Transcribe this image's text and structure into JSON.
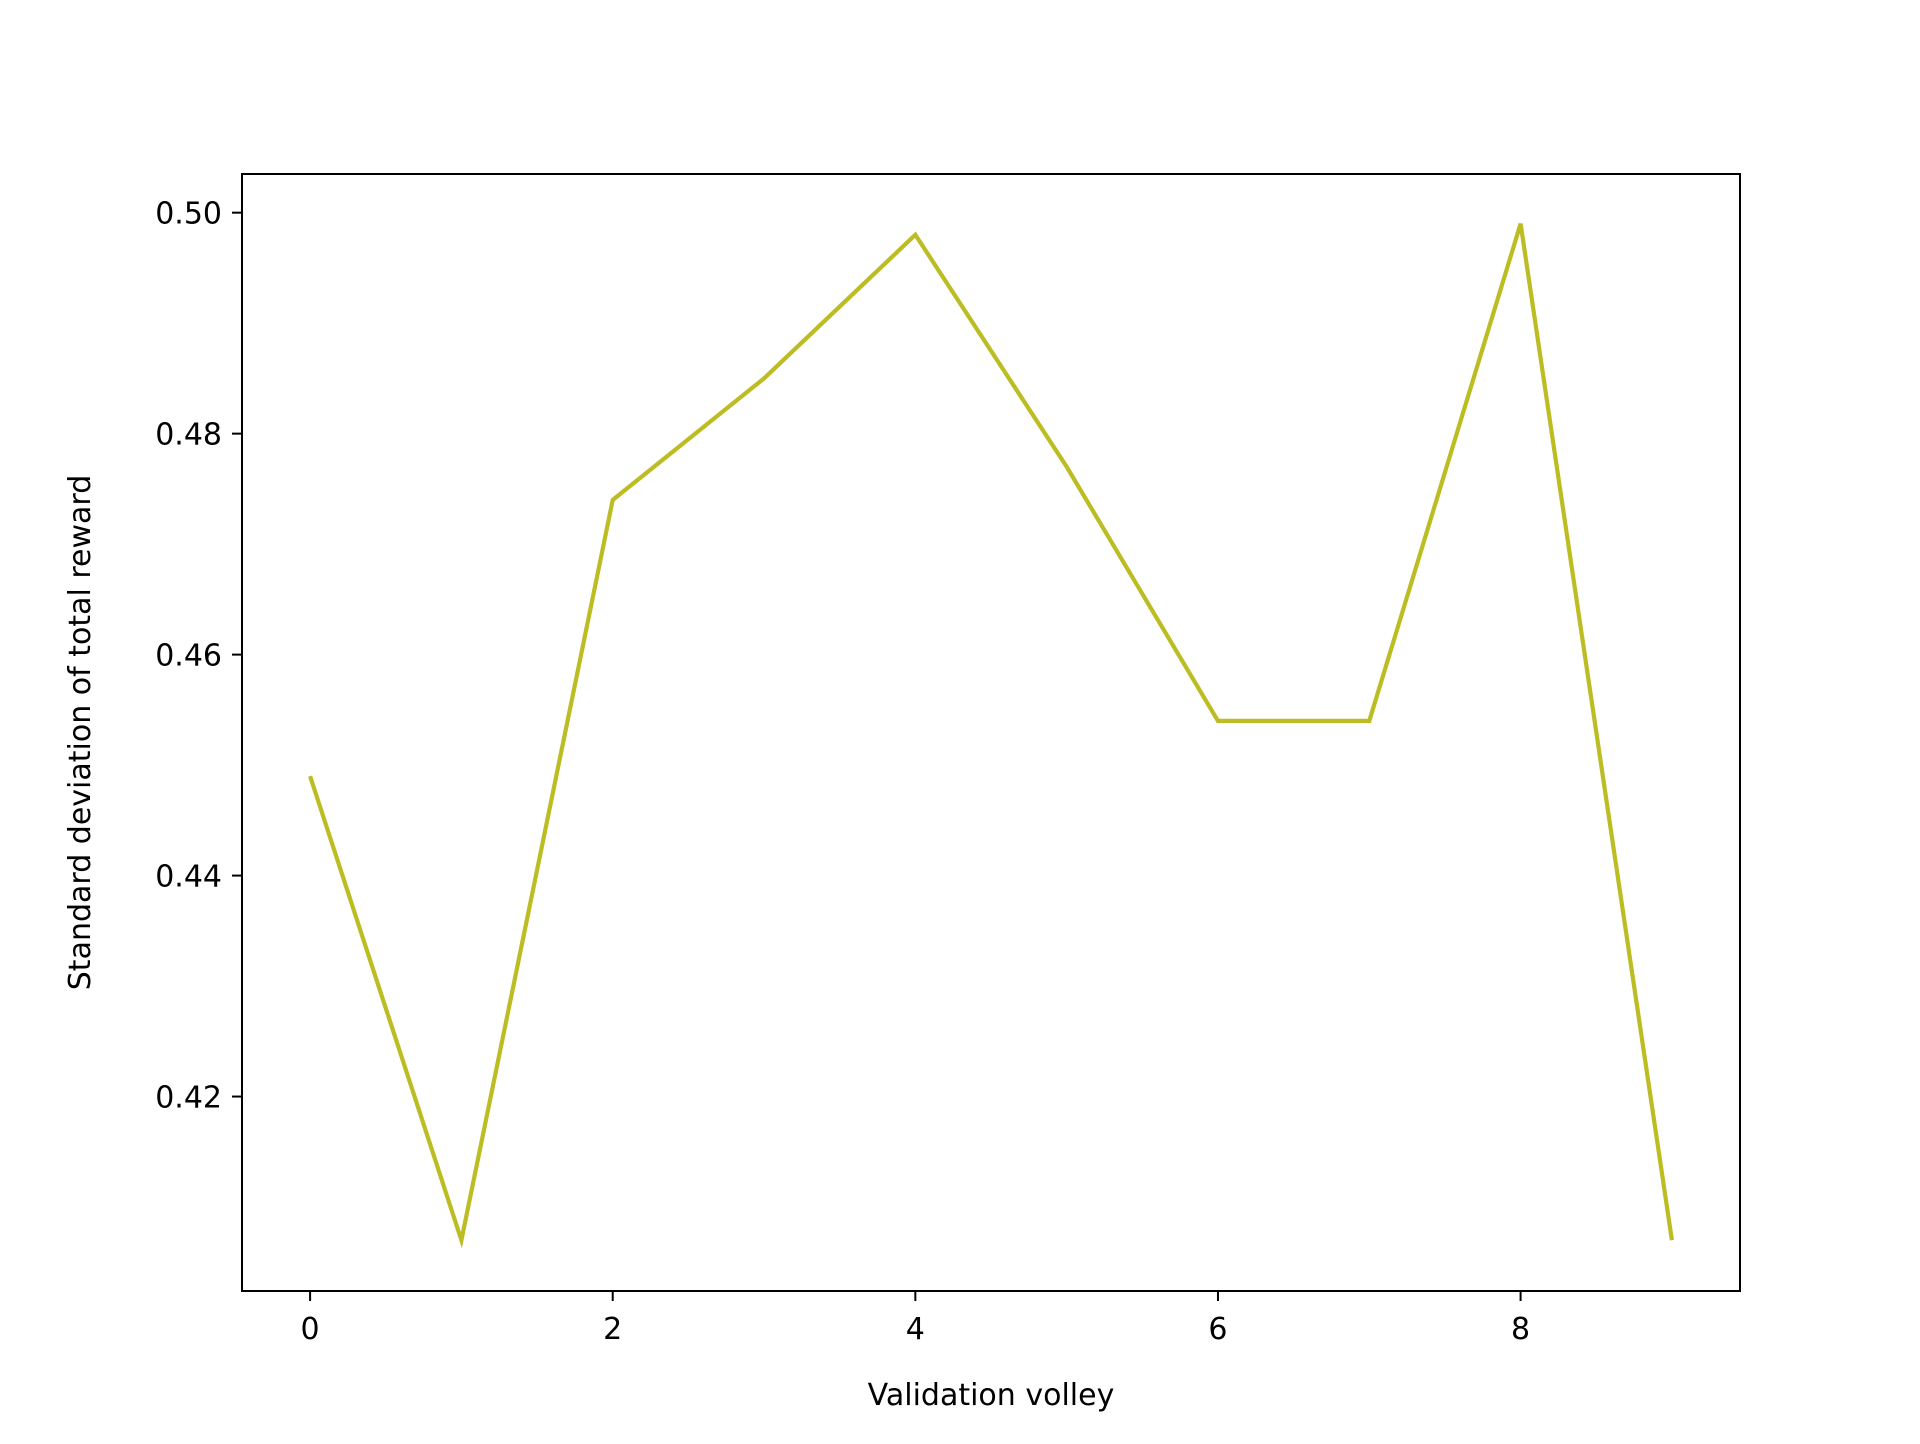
{
  "chart_data": {
    "type": "line",
    "title": "",
    "xlabel": "Validation volley",
    "ylabel": "Standard deviation of total reward",
    "x": [
      0,
      1,
      2,
      3,
      4,
      5,
      6,
      7,
      8,
      9
    ],
    "series": [
      {
        "values": [
          0.449,
          0.407,
          0.474,
          0.485,
          0.498,
          0.477,
          0.454,
          0.454,
          0.499,
          0.407
        ],
        "color": "#bcbd22"
      }
    ],
    "xlim": [
      -0.45,
      9.45
    ],
    "ylim": [
      0.4024,
      0.5035
    ],
    "xticks": [
      0,
      2,
      4,
      6,
      8
    ],
    "xtick_labels": [
      "0",
      "2",
      "4",
      "6",
      "8"
    ],
    "yticks": [
      0.42,
      0.44,
      0.46,
      0.48,
      0.5
    ],
    "ytick_labels": [
      "0.42",
      "0.44",
      "0.46",
      "0.48",
      "0.50"
    ],
    "grid": false,
    "legend": "none"
  }
}
